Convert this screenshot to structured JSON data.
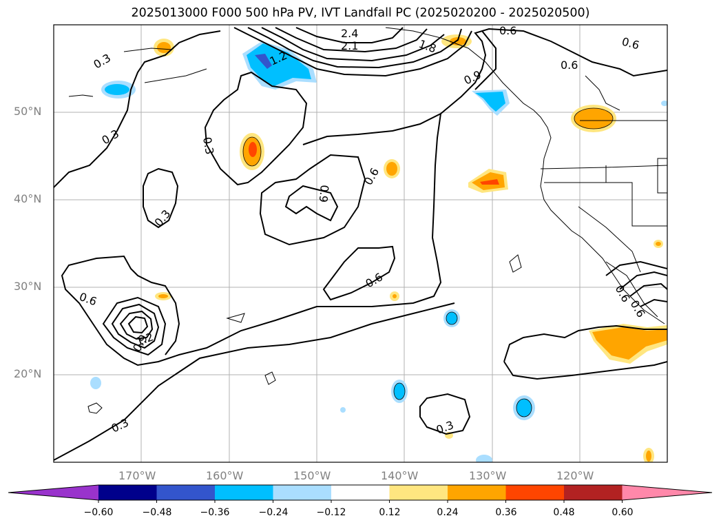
{
  "title": "2025013000 F000 500 hPa PV, IVT Landfall PC (2025020200 - 2025020500)",
  "lat_labels": [
    "50°N",
    "40°N",
    "30°N",
    "20°N"
  ],
  "lon_labels": [
    "170°W",
    "160°W",
    "150°W",
    "140°W",
    "130°W",
    "120°W"
  ],
  "colorbar": {
    "tick_labels": [
      "−0.60",
      "−0.48",
      "−0.36",
      "−0.24",
      "−0.12",
      "0.12",
      "0.24",
      "0.36",
      "0.48",
      "0.60"
    ],
    "colors": [
      "#9933cc",
      "#00008b",
      "#3355cc",
      "#00bfff",
      "#aadeff",
      "#ffffff",
      "#ffe680",
      "#ffa500",
      "#ff4500",
      "#b22222",
      "#ff88aa"
    ]
  },
  "contour_labels": [
    "0.3",
    "0.3",
    "0.3",
    "0.3",
    "0.3",
    "0.3",
    "0.6",
    "0.6",
    "0.6",
    "0.6",
    "0.6",
    "0.6",
    "0.9",
    "0.9",
    "1.2",
    "1.2",
    "1.8",
    "2.1",
    "2.4",
    "0.9",
    "0.6",
    "0.6"
  ],
  "shading_colors": {
    "orange": "#ffa500",
    "light_orange": "#ffe680",
    "red": "#ff4500",
    "cyan": "#00bfff",
    "light_cyan": "#aadeff",
    "blue": "#3355cc"
  }
}
